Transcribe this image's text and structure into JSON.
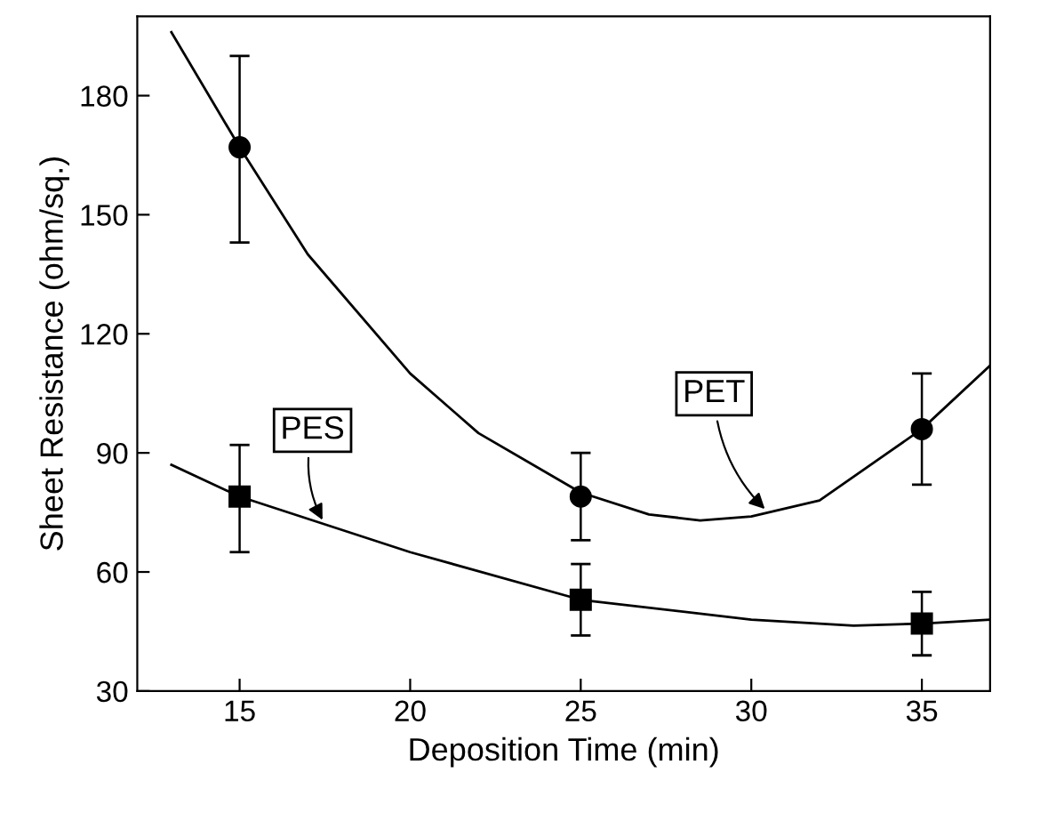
{
  "chart_data": {
    "type": "scatter",
    "xlabel": "Deposition Time (min)",
    "ylabel": "Sheet Resistance (ohm/sq.)",
    "xlim": [
      12,
      37
    ],
    "ylim": [
      30,
      200
    ],
    "xticks": [
      15,
      20,
      25,
      30,
      35
    ],
    "yticks": [
      30,
      60,
      90,
      120,
      150,
      180
    ],
    "grid": false,
    "series": [
      {
        "color": "#000000",
        "marker": "circle",
        "x": [
          15,
          25,
          35
        ],
        "values": [
          167,
          79,
          96
        ],
        "errors": [
          [
            143,
            190
          ],
          [
            68,
            90
          ],
          [
            82,
            110
          ]
        ]
      },
      {
        "color": "#000000",
        "marker": "square",
        "x": [
          15,
          25,
          35
        ],
        "values": [
          79,
          53,
          47
        ],
        "errors": [
          [
            65,
            92
          ],
          [
            44,
            62
          ],
          [
            39,
            55
          ]
        ]
      },
      {
        "type": "line",
        "color": "#000000",
        "marker": "none",
        "x": [
          13,
          15,
          17,
          20,
          22,
          25,
          27,
          28.5,
          30,
          32,
          35,
          37
        ],
        "values": [
          196,
          167,
          140,
          110,
          95,
          80,
          74.5,
          73,
          74,
          78,
          96,
          112
        ]
      },
      {
        "type": "line",
        "color": "#000000",
        "marker": "none",
        "x": [
          13,
          15,
          20,
          25,
          30,
          33,
          35,
          37
        ],
        "values": [
          87,
          79,
          65,
          53,
          48,
          46.5,
          47,
          48
        ]
      }
    ],
    "annotations": [
      {
        "text": "PES",
        "x": 17.5,
        "y": 72
      },
      {
        "text": "PET",
        "x": 30.5,
        "y": 75
      }
    ]
  }
}
